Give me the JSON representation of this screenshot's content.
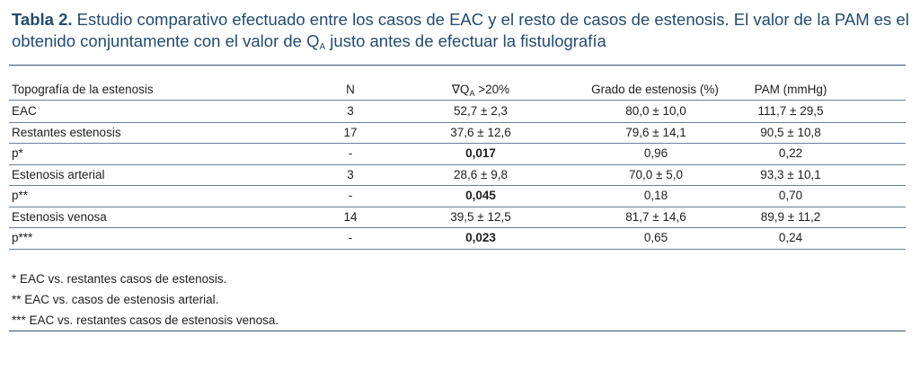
{
  "caption": {
    "label": "Tabla 2.",
    "text_a": " Estudio comparativo efectuado entre los casos de EAC y el resto de casos de estenosis. El valor de la PAM es el obtenido conjuntamente con el valor de Q",
    "subscript": "A",
    "text_b": " justo antes de efectuar la fistulografía"
  },
  "table": {
    "headers": {
      "col0": "Topografía de la estenosis",
      "col1": "N",
      "col2_prefix": "∇Q",
      "col2_sub": "A",
      "col2_suffix": " >20%",
      "col3": "Grado de estenosis (%)",
      "col4": "PAM (mmHg)"
    },
    "rows": [
      {
        "c0": "EAC",
        "c1": "3",
        "c2": "52,7 ± 2,3",
        "c3": "80,0 ± 10,0",
        "c4": "111,7 ± 29,5",
        "bold_c2": false
      },
      {
        "c0": "Restantes estenosis",
        "c1": "17",
        "c2": "37,6 ± 12,6",
        "c3": "79,6 ± 14,1",
        "c4": "90,5 ± 10,8",
        "bold_c2": false
      },
      {
        "c0": "p*",
        "c1": "-",
        "c2": "0,017",
        "c3": "0,96",
        "c4": "0,22",
        "bold_c2": true
      },
      {
        "c0": "Estenosis arterial",
        "c1": "3",
        "c2": "28,6 ± 9,8",
        "c3": "70,0 ± 5,0",
        "c4": "93,3 ± 10,1",
        "bold_c2": false
      },
      {
        "c0": "p**",
        "c1": "-",
        "c2": "0,045",
        "c3": "0,18",
        "c4": "0,70",
        "bold_c2": true
      },
      {
        "c0": "Estenosis venosa",
        "c1": "14",
        "c2": "39,5 ± 12,5",
        "c3": "81,7 ± 14,6",
        "c4": "89,9 ± 11,2",
        "bold_c2": false
      },
      {
        "c0": "p***",
        "c1": "-",
        "c2": "0,023",
        "c3": "0,65",
        "c4": "0,24",
        "bold_c2": true
      }
    ]
  },
  "footnotes": [
    "* EAC vs. restantes casos de estenosis.",
    "** EAC vs. casos de estenosis arterial.",
    "*** EAC vs. restantes casos de estenosis venosa."
  ]
}
